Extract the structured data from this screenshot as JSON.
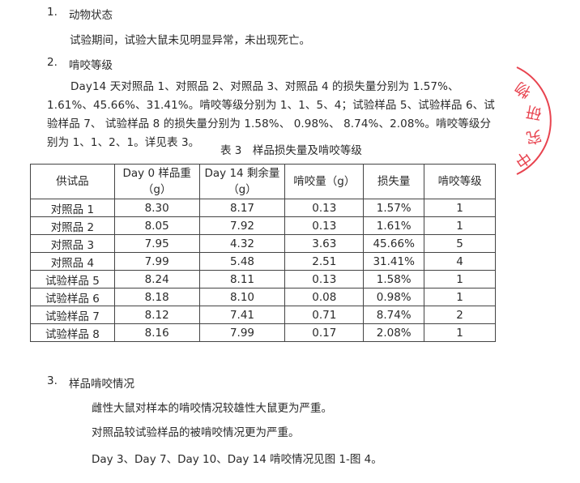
{
  "section1": {
    "number": "1.",
    "title": "动物状态",
    "text": "试验期间，试验大鼠未见明显异常，未出现死亡。"
  },
  "section2": {
    "number": "2.",
    "title": "啃咬等级",
    "text": "Day14 天对照品 1、对照品 2、对照品 3、对照品 4 的损失量分别为 1.57%、1.61%、45.66%、31.41%。啃咬等级分别为 1、1、5、4；试验样品 5、试验样品 6、试验样品 7、 试验样品 8 的损失量分别为 1.58%、 0.98%、 8.74%、2.08%。啃咬等级分别为 1、1、2、1。详见表 3。"
  },
  "table": {
    "caption": "表 3　样品损失量及啃咬等级",
    "headers": [
      "供试品",
      "Day 0 样品重（g）",
      "Day 14 剩余量（g）",
      "啃咬量（g）",
      "损失量",
      "啃咬等级"
    ],
    "rows": [
      [
        "对照品 1",
        "8.30",
        "8.17",
        "0.13",
        "1.57%",
        "1"
      ],
      [
        "对照品 2",
        "8.05",
        "7.92",
        "0.13",
        "1.61%",
        "1"
      ],
      [
        "对照品 3",
        "7.95",
        "4.32",
        "3.63",
        "45.66%",
        "5"
      ],
      [
        "对照品 4",
        "7.99",
        "5.48",
        "2.51",
        "31.41%",
        "4"
      ],
      [
        "试验样品 5",
        "8.24",
        "8.11",
        "0.13",
        "1.58%",
        "1"
      ],
      [
        "试验样品 6",
        "8.18",
        "8.10",
        "0.08",
        "0.98%",
        "1"
      ],
      [
        "试验样品 7",
        "8.12",
        "7.41",
        "0.71",
        "8.74%",
        "2"
      ],
      [
        "试验样品 8",
        "8.16",
        "7.99",
        "0.17",
        "2.08%",
        "1"
      ]
    ]
  },
  "section3": {
    "number": "3.",
    "title": "样品啃咬情况",
    "lines": [
      "雌性大鼠对样本的啃咬情况较雄性大鼠更为严重。",
      "对照品较试验样品的被啃咬情况更为严重。",
      "Day 3、Day 7、Day 10、Day 14 啃咬情况见图 1-图 4。"
    ]
  },
  "stamp": {
    "text": "物研究中",
    "color": "#e8434f"
  }
}
